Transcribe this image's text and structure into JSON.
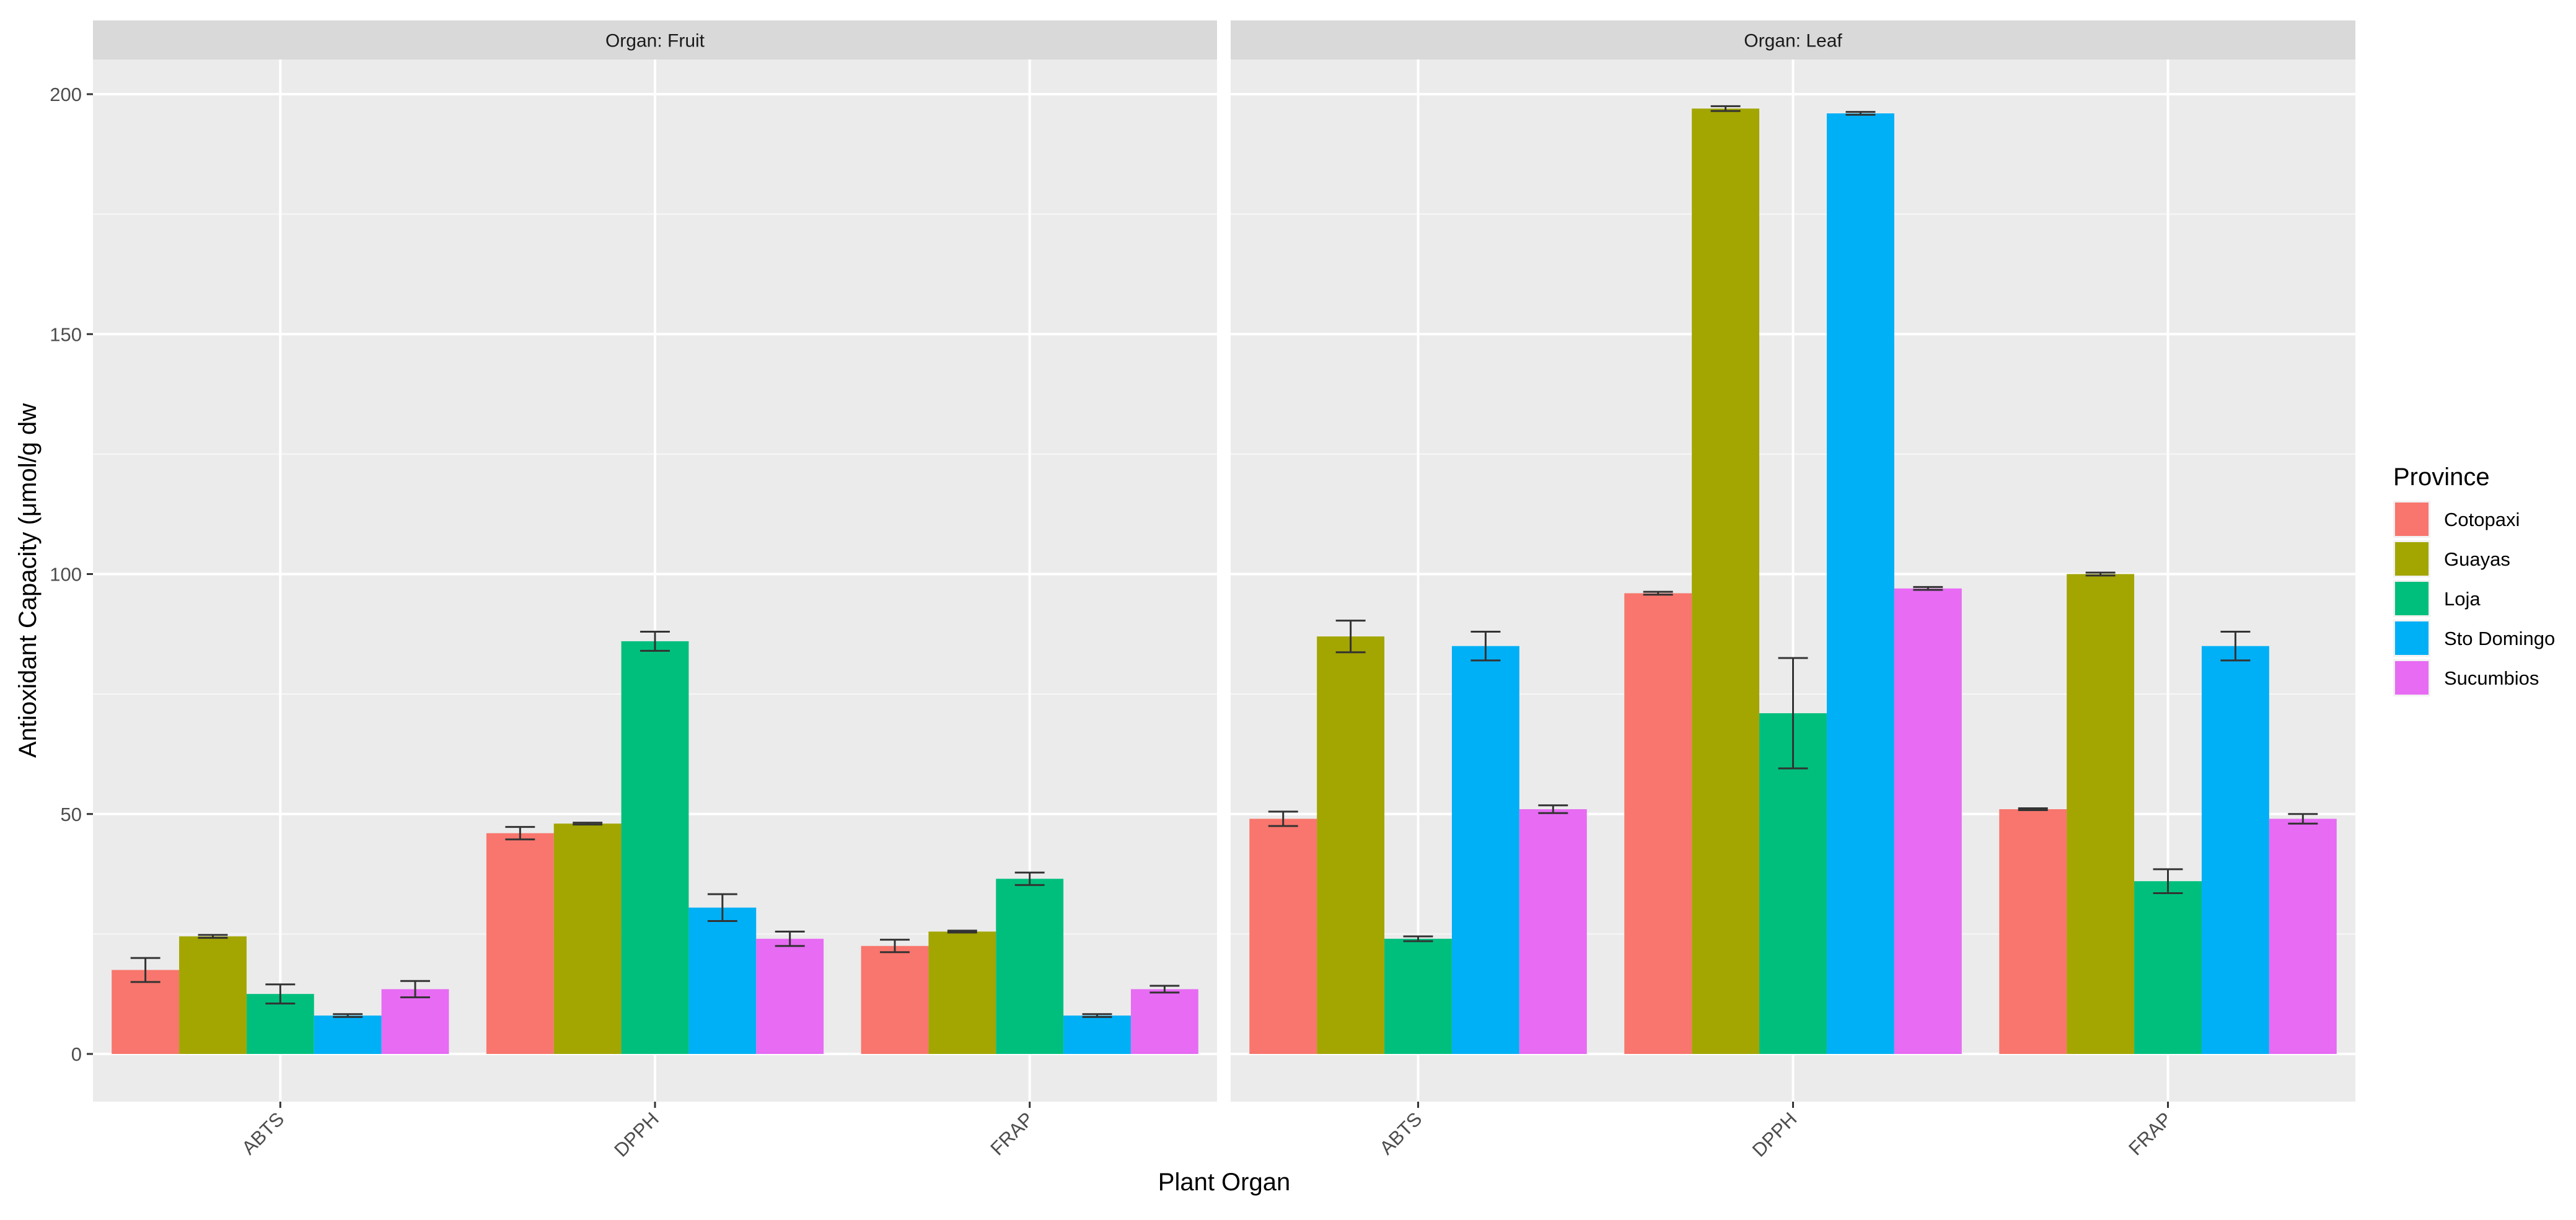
{
  "chart_data": {
    "type": "bar",
    "xlabel": "Plant Organ",
    "ylabel": "Antioxidant Capacity (μmol/g dw",
    "ylim": [
      0,
      205
    ],
    "yticks": [
      0,
      50,
      100,
      150,
      200
    ],
    "grid": true,
    "legend_position": "right",
    "legend_title": "Province",
    "categories": [
      "ABTS",
      "DPPH",
      "FRAP"
    ],
    "series_names": [
      "Cotopaxi",
      "Guayas",
      "Loja",
      "Sto Domingo",
      "Sucumbios"
    ],
    "colors": [
      "#F8766D",
      "#A3A500",
      "#00BF7D",
      "#00B0F6",
      "#E76BF3"
    ],
    "panels": [
      {
        "title": "Organ: Fruit",
        "series": [
          {
            "name": "Cotopaxi",
            "values": [
              17.5,
              46,
              22.5
            ],
            "errors": [
              2.5,
              1.3,
              1.3
            ]
          },
          {
            "name": "Guayas",
            "values": [
              24.5,
              48,
              25.5
            ],
            "errors": [
              0.3,
              0.2,
              0.2
            ]
          },
          {
            "name": "Loja",
            "values": [
              12.5,
              86,
              36.5
            ],
            "errors": [
              2.0,
              2.0,
              1.3
            ]
          },
          {
            "name": "Sto Domingo",
            "values": [
              8,
              30.5,
              8
            ],
            "errors": [
              0.3,
              2.8,
              0.3
            ]
          },
          {
            "name": "Sucumbios",
            "values": [
              13.5,
              24,
              13.5
            ],
            "errors": [
              1.7,
              1.5,
              0.7
            ]
          }
        ]
      },
      {
        "title": "Organ: Leaf",
        "series": [
          {
            "name": "Cotopaxi",
            "values": [
              49,
              96,
              51
            ],
            "errors": [
              1.5,
              0.3,
              0.2
            ]
          },
          {
            "name": "Guayas",
            "values": [
              87,
              197,
              100
            ],
            "errors": [
              3.3,
              0.5,
              0.3
            ]
          },
          {
            "name": "Loja",
            "values": [
              24,
              71,
              36
            ],
            "errors": [
              0.5,
              11.5,
              2.5
            ]
          },
          {
            "name": "Sto Domingo",
            "values": [
              85,
              196,
              85
            ],
            "errors": [
              3.0,
              0.3,
              3.0
            ]
          },
          {
            "name": "Sucumbios",
            "values": [
              51,
              97,
              49
            ],
            "errors": [
              0.8,
              0.3,
              1.0
            ]
          }
        ]
      }
    ]
  }
}
